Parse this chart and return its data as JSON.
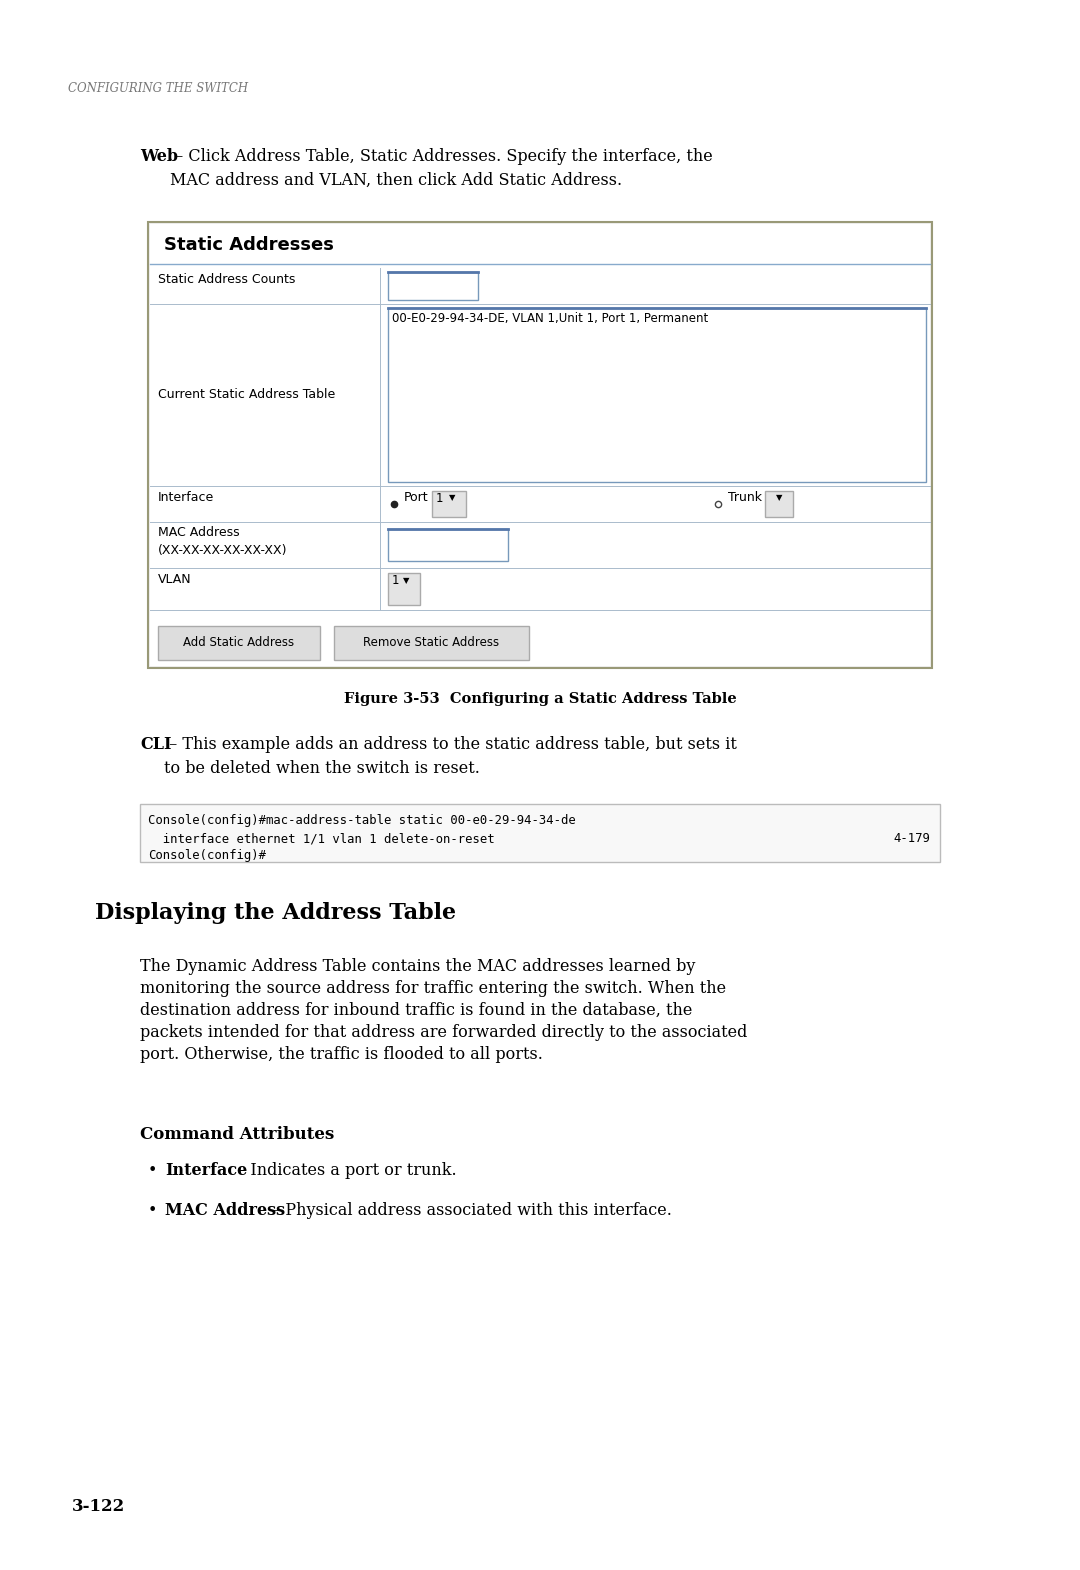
{
  "bg_color": "#ffffff",
  "page_width": 10.8,
  "page_height": 15.7,
  "header_text": "CONFIGURING THE SWITCH",
  "web_bold": "Web",
  "web_text": " – Click Address Table, Static Addresses. Specify the interface, the\nMAC address and VLAN, then click Add Static Address.",
  "fig_title": "Static Addresses",
  "static_addr_label": "Static Address Counts",
  "current_table_label": "Current Static Address Table",
  "current_table_value": "00-E0-29-94-34-DE, VLAN 1,Unit 1, Port 1, Permanent",
  "interface_label": "Interface",
  "interface_port": "Port",
  "interface_port_val": "1",
  "interface_trunk": "Trunk",
  "mac_label": "MAC Address\n(XX-XX-XX-XX-XX-XX)",
  "vlan_label": "VLAN",
  "vlan_val": "1",
  "btn1": "Add Static Address",
  "btn2": "Remove Static Address",
  "fig_caption": "Figure 3-53  Configuring a Static Address Table",
  "cli_bold": "CLI",
  "cli_text": " – This example adds an address to the static address table, but sets it\nto be deleted when the switch is reset.",
  "code_line1": "Console(config)#mac-address-table static 00-e0-29-94-34-de",
  "code_line2": "  interface ethernet 1/1 vlan 1 delete-on-reset",
  "code_line3": "Console(config)#",
  "code_right": "4-179",
  "section_title": "Displaying the Address Table",
  "para1_line1": "The Dynamic Address Table contains the MAC addresses learned by",
  "para1_line2": "monitoring the source address for traffic entering the switch. When the",
  "para1_line3": "destination address for inbound traffic is found in the database, the",
  "para1_line4": "packets intended for that address are forwarded directly to the associated",
  "para1_line5": "port. Otherwise, the traffic is flooded to all ports.",
  "cmd_attr_title": "Command Attributes",
  "bullet1_bold": "Interface",
  "bullet1_text": " – Indicates a port or trunk.",
  "bullet2_bold": "MAC Address",
  "bullet2_text": " – Physical address associated with this interface.",
  "page_num": "3-122",
  "colors": {
    "header": "#777777",
    "body_text": "#000000",
    "gui_outer_border": "#999977",
    "gui_bg": "#f0f0f0",
    "gui_inner_bg": "#ffffff",
    "table_line": "#aabbcc",
    "title_line": "#88aacc",
    "input_border": "#7799bb",
    "input_top": "#5577aa",
    "btn_bg": "#dddddd",
    "btn_border": "#aaaaaa",
    "code_bg": "#f8f8f8",
    "code_border": "#bbbbbb"
  }
}
